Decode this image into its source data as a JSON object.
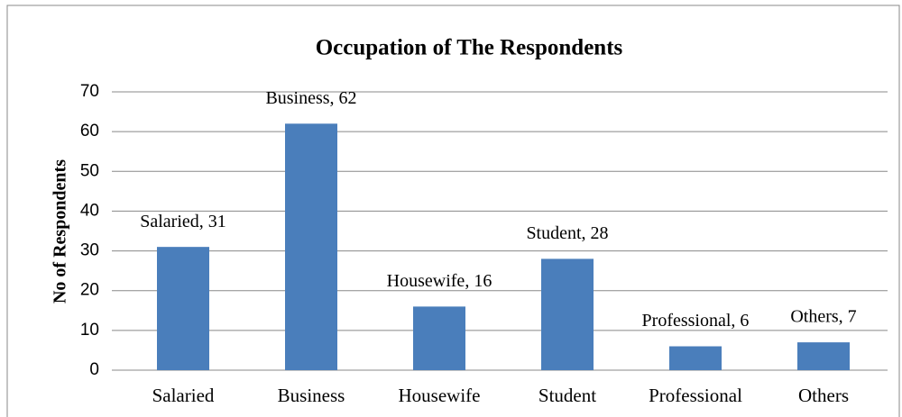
{
  "chart_data": {
    "type": "bar",
    "title": "Occupation of The Respondents",
    "y_label": "No of Respondents",
    "categories": [
      "Salaried",
      "Business",
      "Housewife",
      "Student",
      "Professional",
      "Others"
    ],
    "values": [
      31,
      62,
      16,
      28,
      6,
      7
    ],
    "value_labels": [
      "Salaried, 31",
      "Business, 62",
      "Housewife, 16",
      "Student, 28",
      "Professional, 6",
      "Others, 7"
    ],
    "color": "#4a7ebb",
    "ylim": [
      0,
      70
    ],
    "yticks": [
      0,
      10,
      20,
      30,
      40,
      50,
      60,
      70
    ],
    "grid": true
  }
}
